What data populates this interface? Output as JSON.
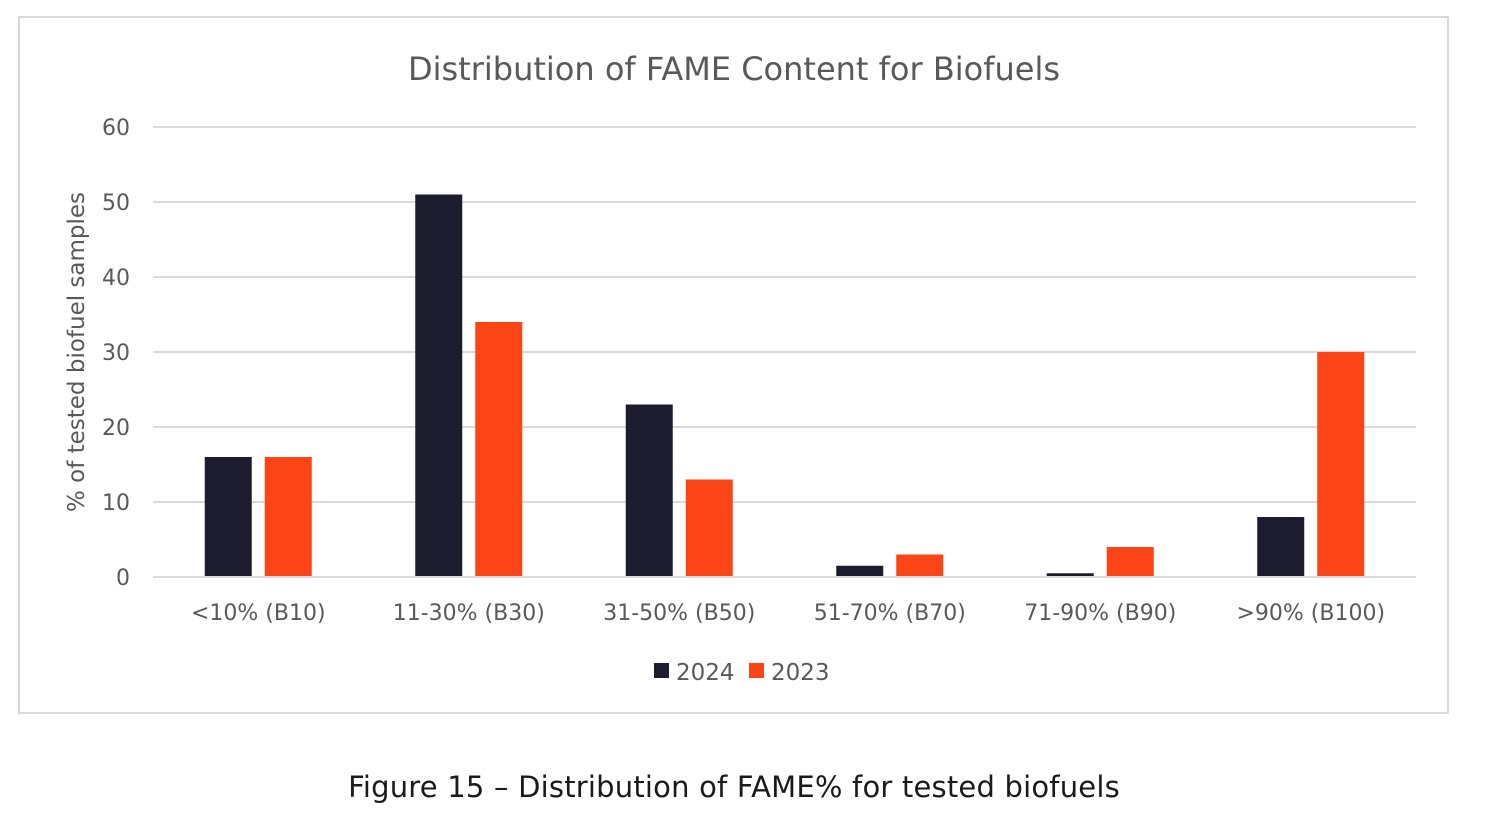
{
  "chart_data": {
    "type": "bar",
    "title": "Distribution of FAME Content for Biofuels",
    "ylabel": "% of tested biofuel samples",
    "xlabel": "",
    "categories": [
      "<10% (B10)",
      "11-30% (B30)",
      "31-50% (B50)",
      "51-70% (B70)",
      "71-90% (B90)",
      ">90% (B100)"
    ],
    "series": [
      {
        "name": "2024",
        "color": "#1c1c2e",
        "values": [
          16,
          51,
          23,
          1.5,
          0.5,
          8
        ]
      },
      {
        "name": "2023",
        "color": "#fc4516",
        "values": [
          16,
          34,
          13,
          3,
          4,
          30
        ]
      }
    ],
    "ylim": [
      0,
      60
    ],
    "yticks": [
      0,
      10,
      20,
      30,
      40,
      50,
      60
    ],
    "grid": true,
    "legend_position": "bottom"
  },
  "caption": "Figure 15 – Distribution of FAME% for tested biofuels"
}
